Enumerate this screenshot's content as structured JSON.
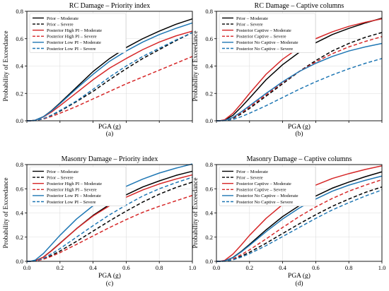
{
  "colors": {
    "prior": "#000000",
    "posterior_a": "#d62728",
    "posterior_b": "#1f77b4"
  },
  "chart_data": [
    {
      "type": "line",
      "title": "RC Damage – Priority index",
      "xlabel": "PGA (g)",
      "ylabel": "Probability of Exceedance",
      "sublabel": "(a)",
      "xlim": [
        0,
        1.0
      ],
      "ylim": [
        0,
        0.8
      ],
      "x_ticks": [
        "0.0",
        "0.2",
        "0.4",
        "0.6",
        "0.8",
        "1.0"
      ],
      "y_ticks": [
        "0.0",
        "0.2",
        "0.4",
        "0.6",
        "0.8"
      ],
      "x_tick_labels_visible": false,
      "grid": true,
      "legend_position": "upper-left",
      "x": [
        0,
        0.02,
        0.05,
        0.1,
        0.15,
        0.2,
        0.3,
        0.4,
        0.5,
        0.6,
        0.7,
        0.8,
        0.9,
        1.0
      ],
      "series": [
        {
          "name": "Prior – Moderate",
          "color": "#000000",
          "dash": "solid",
          "values": [
            0,
            0,
            0.004,
            0.03,
            0.075,
            0.13,
            0.245,
            0.36,
            0.455,
            0.535,
            0.6,
            0.655,
            0.705,
            0.745
          ]
        },
        {
          "name": "Prior – Severe",
          "color": "#000000",
          "dash": "dashed",
          "values": [
            0,
            0,
            0.002,
            0.015,
            0.04,
            0.07,
            0.14,
            0.215,
            0.3,
            0.38,
            0.455,
            0.52,
            0.585,
            0.645
          ]
        },
        {
          "name": "Posterior High PI – Moderate",
          "color": "#d62728",
          "dash": "solid",
          "values": [
            0,
            0,
            0.004,
            0.028,
            0.065,
            0.11,
            0.205,
            0.3,
            0.385,
            0.455,
            0.52,
            0.575,
            0.62,
            0.655
          ]
        },
        {
          "name": "Posterior High PI – Severe",
          "color": "#d62728",
          "dash": "dashed",
          "values": [
            0,
            0,
            0.002,
            0.013,
            0.032,
            0.055,
            0.105,
            0.16,
            0.215,
            0.27,
            0.32,
            0.37,
            0.42,
            0.47
          ]
        },
        {
          "name": "Posterior Low PI – Moderate",
          "color": "#1f77b4",
          "dash": "solid",
          "values": [
            0,
            0,
            0.004,
            0.03,
            0.072,
            0.125,
            0.235,
            0.34,
            0.435,
            0.51,
            0.575,
            0.63,
            0.675,
            0.715
          ]
        },
        {
          "name": "Posterior Low PI – Severe",
          "color": "#1f77b4",
          "dash": "dashed",
          "values": [
            0,
            0,
            0.002,
            0.015,
            0.042,
            0.075,
            0.145,
            0.23,
            0.32,
            0.4,
            0.47,
            0.53,
            0.59,
            0.645
          ]
        }
      ]
    },
    {
      "type": "line",
      "title": "RC Damage – Captive columns",
      "xlabel": "PGA (g)",
      "ylabel": "Probability of Exceedance",
      "sublabel": "(b)",
      "xlim": [
        0,
        1.0
      ],
      "ylim": [
        0,
        0.8
      ],
      "x_ticks": [
        "0.0",
        "0.2",
        "0.4",
        "0.6",
        "0.8",
        "1.0"
      ],
      "y_ticks": [
        "0.0",
        "0.2",
        "0.4",
        "0.6",
        "0.8"
      ],
      "x_tick_labels_visible": false,
      "grid": true,
      "legend_position": "upper-left",
      "x": [
        0,
        0.02,
        0.05,
        0.1,
        0.15,
        0.2,
        0.3,
        0.4,
        0.5,
        0.6,
        0.7,
        0.8,
        0.9,
        1.0
      ],
      "series": [
        {
          "name": "Prior – Moderate",
          "color": "#000000",
          "dash": "solid",
          "values": [
            0,
            0,
            0.005,
            0.04,
            0.1,
            0.165,
            0.3,
            0.41,
            0.5,
            0.57,
            0.63,
            0.675,
            0.715,
            0.75
          ]
        },
        {
          "name": "Prior – Severe",
          "color": "#000000",
          "dash": "dashed",
          "values": [
            0,
            0,
            0.002,
            0.018,
            0.05,
            0.09,
            0.18,
            0.27,
            0.36,
            0.44,
            0.51,
            0.565,
            0.61,
            0.645
          ]
        },
        {
          "name": "Posterior Captive – Moderate",
          "color": "#d62728",
          "dash": "solid",
          "values": [
            0,
            0,
            0.008,
            0.055,
            0.125,
            0.2,
            0.34,
            0.45,
            0.535,
            0.6,
            0.65,
            0.69,
            0.72,
            0.745
          ]
        },
        {
          "name": "Posterior Captive – Severe",
          "color": "#d62728",
          "dash": "dashed",
          "values": [
            0,
            0,
            0.003,
            0.022,
            0.058,
            0.1,
            0.19,
            0.28,
            0.36,
            0.43,
            0.49,
            0.54,
            0.58,
            0.615
          ]
        },
        {
          "name": "Posterior No Captive – Moderate",
          "color": "#1f77b4",
          "dash": "solid",
          "values": [
            0,
            0,
            0.003,
            0.025,
            0.065,
            0.11,
            0.2,
            0.285,
            0.36,
            0.42,
            0.47,
            0.51,
            0.54,
            0.565
          ]
        },
        {
          "name": "Posterior No Captive – Severe",
          "color": "#1f77b4",
          "dash": "dashed",
          "values": [
            0,
            0,
            0.001,
            0.01,
            0.03,
            0.055,
            0.11,
            0.17,
            0.23,
            0.285,
            0.335,
            0.38,
            0.42,
            0.455
          ]
        }
      ]
    },
    {
      "type": "line",
      "title": "Masonry Damage – Priority index",
      "xlabel": "PGA (g)",
      "ylabel": "Probability of Exceedance",
      "sublabel": "(c)",
      "xlim": [
        0,
        1.0
      ],
      "ylim": [
        0,
        0.8
      ],
      "x_ticks": [
        "0.0",
        "0.2",
        "0.4",
        "0.6",
        "0.8",
        "1.0"
      ],
      "y_ticks": [
        "0.0",
        "0.2",
        "0.4",
        "0.6",
        "0.8"
      ],
      "x_tick_labels_visible": true,
      "grid": true,
      "legend_position": "upper-left",
      "x": [
        0,
        0.02,
        0.05,
        0.1,
        0.15,
        0.2,
        0.3,
        0.4,
        0.5,
        0.6,
        0.7,
        0.8,
        0.9,
        1.0
      ],
      "series": [
        {
          "name": "Prior – Moderate",
          "color": "#000000",
          "dash": "solid",
          "values": [
            0,
            0,
            0.004,
            0.035,
            0.09,
            0.15,
            0.27,
            0.38,
            0.47,
            0.55,
            0.615,
            0.665,
            0.71,
            0.745
          ]
        },
        {
          "name": "Prior – Severe",
          "color": "#000000",
          "dash": "dashed",
          "values": [
            0,
            0,
            0.002,
            0.02,
            0.05,
            0.085,
            0.165,
            0.25,
            0.335,
            0.415,
            0.49,
            0.555,
            0.61,
            0.655
          ]
        },
        {
          "name": "Posterior High PI – Moderate",
          "color": "#d62728",
          "dash": "solid",
          "values": [
            0,
            0,
            0.004,
            0.035,
            0.088,
            0.148,
            0.27,
            0.375,
            0.46,
            0.53,
            0.59,
            0.64,
            0.68,
            0.715
          ]
        },
        {
          "name": "Posterior High PI – Severe",
          "color": "#d62728",
          "dash": "dashed",
          "values": [
            0,
            0,
            0.002,
            0.017,
            0.042,
            0.072,
            0.14,
            0.21,
            0.28,
            0.345,
            0.405,
            0.455,
            0.5,
            0.545
          ]
        },
        {
          "name": "Posterior Low PI – Moderate",
          "color": "#1f77b4",
          "dash": "solid",
          "values": [
            0,
            0,
            0.01,
            0.065,
            0.14,
            0.215,
            0.35,
            0.46,
            0.55,
            0.62,
            0.68,
            0.73,
            0.77,
            0.805
          ]
        },
        {
          "name": "Posterior Low PI – Severe",
          "color": "#1f77b4",
          "dash": "dashed",
          "values": [
            0,
            0,
            0.003,
            0.025,
            0.063,
            0.105,
            0.2,
            0.295,
            0.385,
            0.465,
            0.54,
            0.6,
            0.65,
            0.695
          ]
        }
      ]
    },
    {
      "type": "line",
      "title": "Masonry Damage – Captive columns",
      "xlabel": "PGA (g)",
      "ylabel": "Probability of Exceedance",
      "sublabel": "(d)",
      "xlim": [
        0,
        1.0
      ],
      "ylim": [
        0,
        0.8
      ],
      "x_ticks": [
        "0.0",
        "0.2",
        "0.4",
        "0.6",
        "0.8",
        "1.0"
      ],
      "y_ticks": [
        "0.0",
        "0.2",
        "0.4",
        "0.6",
        "0.8"
      ],
      "x_tick_labels_visible": true,
      "grid": true,
      "legend_position": "upper-left",
      "x": [
        0,
        0.02,
        0.05,
        0.1,
        0.15,
        0.2,
        0.3,
        0.4,
        0.5,
        0.6,
        0.7,
        0.8,
        0.9,
        1.0
      ],
      "series": [
        {
          "name": "Prior – Moderate",
          "color": "#000000",
          "dash": "solid",
          "values": [
            0,
            0,
            0.004,
            0.032,
            0.082,
            0.14,
            0.26,
            0.37,
            0.46,
            0.54,
            0.605,
            0.655,
            0.7,
            0.74
          ]
        },
        {
          "name": "Prior – Severe",
          "color": "#000000",
          "dash": "dashed",
          "values": [
            0,
            0,
            0.002,
            0.016,
            0.043,
            0.075,
            0.15,
            0.23,
            0.31,
            0.385,
            0.455,
            0.515,
            0.57,
            0.615
          ]
        },
        {
          "name": "Posterior Captive – Moderate",
          "color": "#d62728",
          "dash": "solid",
          "values": [
            0,
            0,
            0.008,
            0.06,
            0.135,
            0.215,
            0.355,
            0.47,
            0.56,
            0.63,
            0.685,
            0.725,
            0.76,
            0.79
          ]
        },
        {
          "name": "Posterior Captive – Severe",
          "color": "#d62728",
          "dash": "dashed",
          "values": [
            0,
            0,
            0.002,
            0.02,
            0.055,
            0.095,
            0.185,
            0.28,
            0.37,
            0.45,
            0.52,
            0.58,
            0.63,
            0.675
          ]
        },
        {
          "name": "Posterior No Captive – Moderate",
          "color": "#1f77b4",
          "dash": "solid",
          "values": [
            0,
            0,
            0.004,
            0.03,
            0.078,
            0.132,
            0.245,
            0.35,
            0.44,
            0.515,
            0.58,
            0.63,
            0.67,
            0.705
          ]
        },
        {
          "name": "Posterior No Captive – Severe",
          "color": "#1f77b4",
          "dash": "dashed",
          "values": [
            0,
            0,
            0.001,
            0.012,
            0.035,
            0.063,
            0.13,
            0.205,
            0.28,
            0.355,
            0.425,
            0.485,
            0.54,
            0.59
          ]
        }
      ]
    }
  ]
}
